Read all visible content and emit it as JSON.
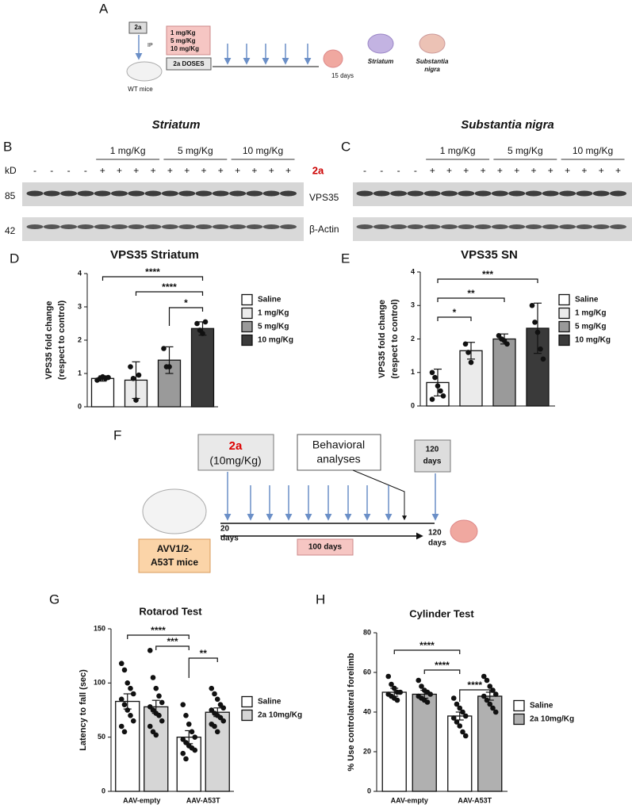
{
  "panel_a": {
    "label": "A",
    "drug": "2a",
    "route": "IP",
    "animal": "WT mice",
    "doses": [
      "1 mg/Kg",
      "5 mg/Kg",
      "10 mg/Kg"
    ],
    "doses_box": "2a DOSES",
    "duration": "15 days",
    "region_1": "Striatum",
    "region_2": [
      "Substantia",
      "nigra"
    ]
  },
  "blots": {
    "labels": [
      "B",
      "C"
    ],
    "titles": [
      "Striatum",
      "Substantia nigra"
    ],
    "doses": [
      "1 mg/Kg",
      "5 mg/Kg",
      "10 mg/Kg"
    ],
    "kd": "kD",
    "minus": "-",
    "plus": "+",
    "treatment": "2a",
    "markers": [
      85,
      42
    ],
    "proteins": [
      "VPS35",
      "β-Actin"
    ]
  },
  "panel_f": {
    "label": "F",
    "drug": "2a",
    "dose": "(10mg/Kg)",
    "behavior": [
      "Behavioral",
      "analyses"
    ],
    "end_box": [
      "120",
      "days"
    ],
    "mice": [
      "AVV1/2-",
      "A53T mice"
    ],
    "start": [
      "20",
      "days"
    ],
    "end": [
      "120",
      "days"
    ],
    "duration": "100 days"
  },
  "chart_data": [
    {
      "type": "bar",
      "panel": "D",
      "title": "VPS35 Striatum",
      "ylabel": [
        "VPS35  fold change",
        "(respect to control)"
      ],
      "ylim": [
        0,
        4
      ],
      "yticks": [
        0,
        1,
        2,
        3,
        4
      ],
      "series": [
        {
          "name": "Saline",
          "color": "#ffffff",
          "values": [
            0.85
          ],
          "errors": [
            0.08
          ],
          "points": [
            [
              0.8,
              0.85,
              0.9,
              0.85,
              0.88
            ]
          ]
        },
        {
          "name": "1 mg/Kg",
          "color": "#ebebeb",
          "values": [
            0.8
          ],
          "errors": [
            0.55
          ],
          "points": [
            [
              1.2,
              0.85,
              0.2,
              0.95
            ]
          ]
        },
        {
          "name": "5 mg/Kg",
          "color": "#9a9a9a",
          "values": [
            1.4
          ],
          "errors": [
            0.4
          ],
          "points": [
            [
              1.75,
              1.2,
              1.2
            ]
          ]
        },
        {
          "name": "10 mg/Kg",
          "color": "#3a3a3a",
          "values": [
            2.35
          ],
          "errors": [
            0.2
          ],
          "points": [
            [
              2.5,
              2.3,
              2.2,
              2.55
            ]
          ]
        }
      ],
      "annotations": [
        "****",
        "****",
        "*"
      ]
    },
    {
      "type": "bar",
      "panel": "E",
      "title": "VPS35 SN",
      "ylabel": [
        "VPS35  fold change",
        "(respect to control)"
      ],
      "ylim": [
        0,
        4
      ],
      "yticks": [
        0,
        1,
        2,
        3,
        4
      ],
      "series": [
        {
          "name": "Saline",
          "color": "#ffffff",
          "values": [
            0.7
          ],
          "errors": [
            0.4
          ],
          "points": [
            [
              1.0,
              0.85,
              0.6,
              0.45,
              0.3,
              0.2
            ]
          ]
        },
        {
          "name": "1 mg/Kg",
          "color": "#ebebeb",
          "values": [
            1.65
          ],
          "errors": [
            0.25
          ],
          "points": [
            [
              1.85,
              1.6,
              1.3
            ]
          ]
        },
        {
          "name": "5 mg/Kg",
          "color": "#9a9a9a",
          "values": [
            2.0
          ],
          "errors": [
            0.15
          ],
          "points": [
            [
              2.1,
              2.0,
              1.95,
              1.85
            ]
          ]
        },
        {
          "name": "10 mg/Kg",
          "color": "#3a3a3a",
          "values": [
            2.32
          ],
          "errors": [
            0.75
          ],
          "points": [
            [
              3.0,
              2.5,
              2.2,
              1.7,
              1.4
            ]
          ]
        }
      ],
      "annotations": [
        "*",
        "**",
        "***"
      ]
    },
    {
      "type": "bar",
      "panel": "G",
      "title": "Rotarod Test",
      "ylabel": [
        "Latency to fall (sec)"
      ],
      "ylim": [
        0,
        150
      ],
      "yticks": [
        0,
        50,
        100,
        150
      ],
      "categories": [
        "AAV-empty",
        "AAV-A53T"
      ],
      "series": [
        {
          "name": "Saline",
          "color": "#ffffff",
          "values": [
            83,
            50
          ],
          "errors": [
            7,
            6
          ],
          "points": [
            [
              118,
              112,
              100,
              95,
              90,
              85,
              80,
              75,
              70,
              65,
              60,
              55
            ],
            [
              80,
              70,
              62,
              55,
              50,
              48,
              45,
              42,
              40,
              38,
              35,
              30
            ]
          ]
        },
        {
          "name": "2a 10mg/Kg",
          "color": "#d6d6d6",
          "values": [
            78,
            73
          ],
          "errors": [
            6,
            4
          ],
          "points": [
            [
              130,
              105,
              95,
              88,
              82,
              78,
              75,
              72,
              70,
              65,
              60,
              55,
              52
            ],
            [
              95,
              90,
              85,
              80,
              77,
              75,
              72,
              70,
              68,
              65,
              62,
              60,
              55
            ]
          ]
        }
      ],
      "annotations": [
        "****",
        "***",
        "**"
      ]
    },
    {
      "type": "bar",
      "panel": "H",
      "title": "Cylinder Test",
      "ylabel": [
        "% Use controlateral forelimb"
      ],
      "ylim": [
        0,
        80
      ],
      "yticks": [
        0,
        20,
        40,
        60,
        80
      ],
      "categories": [
        "AAV-empty",
        "AAV-A53T"
      ],
      "series": [
        {
          "name": "Saline",
          "color": "#ffffff",
          "values": [
            50,
            38
          ],
          "errors": [
            2,
            2
          ],
          "points": [
            [
              58,
              54,
              52,
              50,
              50,
              49,
              48,
              47,
              46
            ],
            [
              47,
              44,
              42,
              40,
              38,
              37,
              35,
              33,
              30,
              28
            ]
          ]
        },
        {
          "name": "2a 10mg/Kg",
          "color": "#b0b0b0",
          "values": [
            49,
            48
          ],
          "errors": [
            2,
            2
          ],
          "points": [
            [
              56,
              53,
              51,
              50,
              49,
              48,
              47,
              46,
              45
            ],
            [
              58,
              56,
              53,
              51,
              49,
              48,
              46,
              44,
              42,
              40
            ]
          ]
        }
      ],
      "annotations": [
        "****",
        "****",
        "****"
      ]
    }
  ]
}
